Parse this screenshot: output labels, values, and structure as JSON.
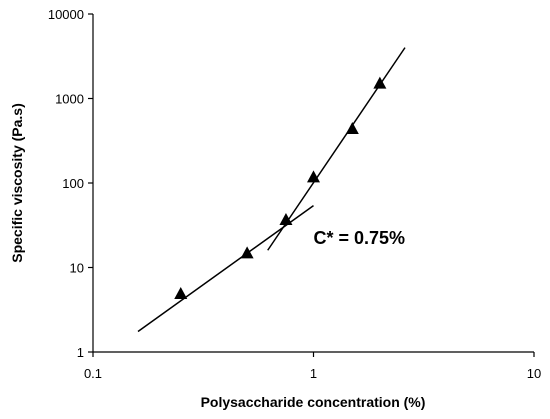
{
  "chart_data": {
    "type": "scatter",
    "title": "",
    "xlabel": "Polysaccharide concentration (%)",
    "ylabel": "Specific viscosity (Pa.s)",
    "xscale": "log",
    "yscale": "log",
    "xlim": [
      0.1,
      10
    ],
    "ylim": [
      1,
      10000
    ],
    "x_ticks": [
      0.1,
      1,
      10
    ],
    "x_tick_labels": [
      "0.1",
      "1",
      "10"
    ],
    "y_ticks": [
      1,
      10,
      100,
      1000,
      10000
    ],
    "y_tick_labels": [
      "1",
      "10",
      "100",
      "1000",
      "10000"
    ],
    "grid": false,
    "legend": "none",
    "marker": "triangle",
    "marker_color": "#000000",
    "series": [
      {
        "x": [
          0.25,
          0.5,
          0.75,
          1.0,
          1.5,
          2.0
        ],
        "y": [
          4.8,
          14.5,
          36,
          115,
          430,
          1480
        ]
      }
    ],
    "fit_lines": [
      {
        "x": [
          0.16,
          1.0
        ],
        "y": [
          1.75,
          54
        ]
      },
      {
        "x": [
          0.62,
          2.6
        ],
        "y": [
          16,
          4000
        ]
      }
    ],
    "annotations": [
      {
        "text": "C* = 0.75%",
        "x": 1.0,
        "y": 19
      }
    ]
  }
}
